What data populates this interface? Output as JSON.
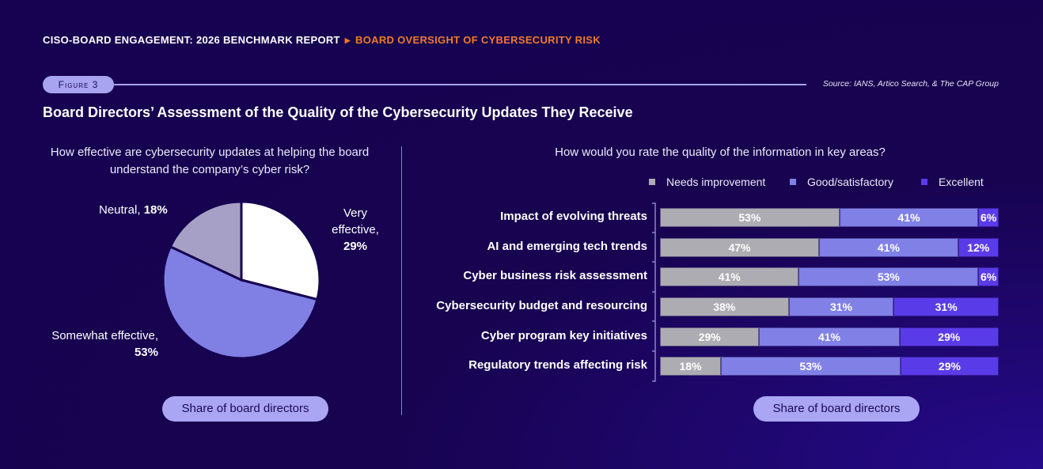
{
  "header": {
    "breadcrumb_root": "CISO-BOARD ENGAGEMENT: 2026 BENCHMARK REPORT",
    "breadcrumb_current": "BOARD OVERSIGHT OF CYBERSECURITY RISK",
    "figure_label": "Figure 3",
    "source": "Source: IANS, Artico Search, & The CAP Group",
    "title": "Board Directors’ Assessment of the Quality of the Cybersecurity Updates They Receive"
  },
  "colors": {
    "background": "#160250",
    "accent_orange": "#f07a2a",
    "needs_improvement": "#adacb3",
    "good": "#8080e6",
    "excellent": "#5a3be8",
    "very_effective": "#ffffff",
    "somewhat_effective": "#7f7fe4",
    "neutral": "#a6a0c6"
  },
  "chart_data": [
    {
      "type": "pie",
      "title": "How effective are cybersecurity updates at helping the board understand the company’s cyber risk?",
      "slices": [
        {
          "label": "Very effective,",
          "value": 29,
          "value_label": "29%"
        },
        {
          "label": "Somewhat effective,",
          "value": 53,
          "value_label": "53%"
        },
        {
          "label": "Neutral,",
          "value": 18,
          "value_label": "18%"
        }
      ],
      "footer": "Share of board directors"
    },
    {
      "type": "bar",
      "orientation": "horizontal-stacked-100",
      "title": "How would you rate the quality of the information in key areas?",
      "legend_position": "top",
      "categories": [
        "Impact of evolving threats",
        "AI and emerging tech trends",
        "Cyber business risk assessment",
        "Cybersecurity budget and resourcing",
        "Cyber program key initiatives",
        "Regulatory trends affecting risk"
      ],
      "series": [
        {
          "name": "Needs improvement",
          "values": [
            53,
            47,
            41,
            38,
            29,
            18
          ]
        },
        {
          "name": "Good/satisfactory",
          "values": [
            41,
            41,
            53,
            31,
            41,
            53
          ]
        },
        {
          "name": "Excellent",
          "values": [
            6,
            12,
            6,
            31,
            29,
            29
          ]
        }
      ],
      "footer": "Share of board directors"
    }
  ]
}
